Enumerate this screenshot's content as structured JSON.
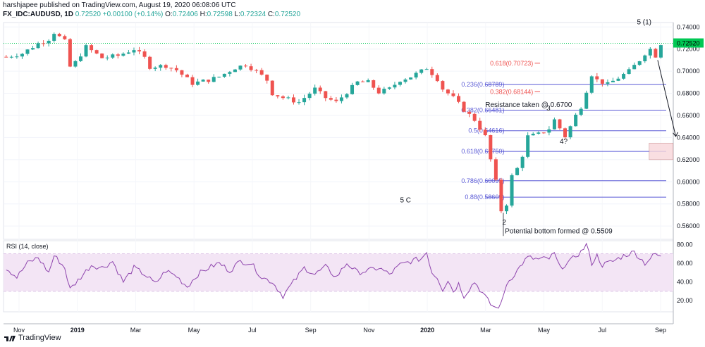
{
  "header": {
    "line1": "harshjapee published on TradingView.com, August 19, 2020 06:08:06 UTC",
    "symbol": "FX_IDC:AUDUSD, 1D",
    "last": "0.72520",
    "change": "+0.00100 (+0.14%)",
    "open_label": "O:",
    "open": "0.72406",
    "high_label": "H:",
    "high": "0.72598",
    "low_label": "L:",
    "low": "0.72324",
    "close_label": "C:",
    "close": "0.72520"
  },
  "footer": {
    "brand": "TradingView"
  },
  "colors": {
    "up": "#26a69a",
    "down": "#ef5350",
    "fib": "#5b5bd6",
    "rsi": "#8e44ad",
    "band": "#f3e5f5",
    "price_tag": "#00c853"
  },
  "chart_data": [
    {
      "type": "candlestick",
      "title": "",
      "y_axis_ticks": [
        "0.74000",
        "0.72000",
        "0.70000",
        "0.68000",
        "0.66000",
        "0.64000",
        "0.62000",
        "0.60000",
        "0.58000",
        "0.56000"
      ],
      "ylim": [
        0.548,
        0.744
      ],
      "current_price": "0.72520",
      "x_axis_ticks": [
        "Nov",
        "2019",
        "Mar",
        "May",
        "Jul",
        "Sep",
        "Nov",
        "2020",
        "Mar",
        "May",
        "Jul",
        "Sep"
      ],
      "close_path": [
        [
          0,
          0.713
        ],
        [
          3,
          0.716
        ],
        [
          6,
          0.725
        ],
        [
          8,
          0.729
        ],
        [
          9,
          0.735
        ],
        [
          10,
          0.731
        ],
        [
          11,
          0.727
        ],
        [
          12,
          0.704
        ],
        [
          13,
          0.708
        ],
        [
          15,
          0.722
        ],
        [
          18,
          0.712
        ],
        [
          21,
          0.714
        ],
        [
          24,
          0.72
        ],
        [
          26,
          0.712
        ],
        [
          27,
          0.704
        ],
        [
          30,
          0.705
        ],
        [
          32,
          0.701
        ],
        [
          35,
          0.689
        ],
        [
          38,
          0.692
        ],
        [
          40,
          0.695
        ],
        [
          43,
          0.703
        ],
        [
          45,
          0.706
        ],
        [
          47,
          0.7
        ],
        [
          49,
          0.692
        ],
        [
          50,
          0.68
        ],
        [
          52,
          0.676
        ],
        [
          55,
          0.672
        ],
        [
          58,
          0.684
        ],
        [
          60,
          0.676
        ],
        [
          62,
          0.672
        ],
        [
          64,
          0.681
        ],
        [
          66,
          0.69
        ],
        [
          68,
          0.69
        ],
        [
          70,
          0.681
        ],
        [
          72,
          0.684
        ],
        [
          74,
          0.692
        ],
        [
          76,
          0.695
        ],
        [
          78,
          0.7
        ],
        [
          79,
          0.703
        ],
        [
          81,
          0.693
        ],
        [
          82,
          0.684
        ],
        [
          84,
          0.676
        ],
        [
          86,
          0.665
        ],
        [
          88,
          0.656
        ],
        [
          90,
          0.641
        ],
        [
          91,
          0.62
        ],
        [
          92,
          0.6
        ],
        [
          93,
          0.574
        ],
        [
          94,
          0.58
        ],
        [
          95,
          0.605
        ],
        [
          96,
          0.612
        ],
        [
          97,
          0.624
        ],
        [
          98,
          0.641
        ],
        [
          100,
          0.643
        ],
        [
          102,
          0.648
        ],
        [
          103,
          0.656
        ],
        [
          105,
          0.641
        ],
        [
          106,
          0.65
        ],
        [
          107,
          0.66
        ],
        [
          108,
          0.668
        ],
        [
          110,
          0.697
        ],
        [
          111,
          0.692
        ],
        [
          113,
          0.688
        ],
        [
          115,
          0.694
        ],
        [
          117,
          0.7
        ],
        [
          119,
          0.71
        ],
        [
          120,
          0.716
        ],
        [
          121,
          0.72
        ],
        [
          122,
          0.714
        ],
        [
          123,
          0.725
        ]
      ],
      "levels": [
        {
          "label": "0.236(0.68789)",
          "value": 0.68789,
          "kind": "fib"
        },
        {
          "label": "0.382(0.66481)",
          "value": 0.66481,
          "kind": "fib"
        },
        {
          "label": "0.5(0.64616)",
          "value": 0.64616,
          "kind": "fib"
        },
        {
          "label": "0.618(0.62750)",
          "value": 0.6275,
          "kind": "fib"
        },
        {
          "label": "0.786(0.60095)",
          "value": 0.60095,
          "kind": "fib"
        },
        {
          "label": "0.88(0.58609)",
          "value": 0.58609,
          "kind": "fib"
        },
        {
          "label": "0.618(0.70723)",
          "value": 0.70723,
          "kind": "target"
        },
        {
          "label": "0.382(0.68144)",
          "value": 0.68144,
          "kind": "target"
        }
      ],
      "annotations": [
        {
          "text": "5 (1)",
          "t": 118.5,
          "y": 0.7425
        },
        {
          "text": "Resistance taken @ 0.6700",
          "t": 90,
          "y": 0.6675
        },
        {
          "text": "3",
          "t": 101.5,
          "y": 0.6645
        },
        {
          "text": "4?",
          "t": 104,
          "y": 0.6345
        },
        {
          "text": "5 C",
          "t": 74,
          "y": 0.5815
        },
        {
          "text": "2",
          "t": 93.2,
          "y": 0.5615
        },
        {
          "text": "Potential bottom formed @ 0.5509",
          "t": 93.7,
          "y": 0.5535
        }
      ]
    },
    {
      "type": "line",
      "title": "RSI (14, close)",
      "y_axis_ticks": [
        "80.00",
        "60.00",
        "40.00",
        "20.00"
      ],
      "ylim": [
        8,
        84
      ],
      "band": [
        30,
        70
      ],
      "rsi_path": [
        [
          0,
          55
        ],
        [
          2,
          45
        ],
        [
          4,
          60
        ],
        [
          6,
          66
        ],
        [
          8,
          50
        ],
        [
          9,
          68
        ],
        [
          10,
          62
        ],
        [
          11,
          55
        ],
        [
          12,
          32
        ],
        [
          14,
          45
        ],
        [
          16,
          58
        ],
        [
          18,
          55
        ],
        [
          20,
          62
        ],
        [
          22,
          40
        ],
        [
          24,
          55
        ],
        [
          26,
          48
        ],
        [
          28,
          38
        ],
        [
          30,
          52
        ],
        [
          32,
          46
        ],
        [
          34,
          35
        ],
        [
          36,
          48
        ],
        [
          38,
          55
        ],
        [
          40,
          60
        ],
        [
          42,
          52
        ],
        [
          44,
          62
        ],
        [
          46,
          60
        ],
        [
          48,
          45
        ],
        [
          50,
          40
        ],
        [
          52,
          25
        ],
        [
          54,
          40
        ],
        [
          56,
          55
        ],
        [
          58,
          48
        ],
        [
          60,
          56
        ],
        [
          62,
          45
        ],
        [
          64,
          60
        ],
        [
          66,
          50
        ],
        [
          68,
          52
        ],
        [
          70,
          55
        ],
        [
          72,
          48
        ],
        [
          74,
          58
        ],
        [
          76,
          62
        ],
        [
          78,
          65
        ],
        [
          79,
          72
        ],
        [
          80,
          50
        ],
        [
          81,
          45
        ],
        [
          82,
          32
        ],
        [
          83,
          42
        ],
        [
          84,
          30
        ],
        [
          85,
          38
        ],
        [
          86,
          25
        ],
        [
          88,
          40
        ],
        [
          90,
          24
        ],
        [
          91,
          16
        ],
        [
          92,
          12
        ],
        [
          93,
          16
        ],
        [
          94,
          38
        ],
        [
          95,
          45
        ],
        [
          96,
          52
        ],
        [
          97,
          60
        ],
        [
          98,
          66
        ],
        [
          100,
          64
        ],
        [
          102,
          65
        ],
        [
          103,
          70
        ],
        [
          104,
          55
        ],
        [
          106,
          62
        ],
        [
          107,
          68
        ],
        [
          108,
          72
        ],
        [
          109,
          80
        ],
        [
          110,
          60
        ],
        [
          111,
          68
        ],
        [
          112,
          58
        ],
        [
          114,
          62
        ],
        [
          116,
          68
        ],
        [
          118,
          72
        ],
        [
          120,
          60
        ],
        [
          122,
          70
        ],
        [
          123,
          66
        ]
      ]
    }
  ]
}
